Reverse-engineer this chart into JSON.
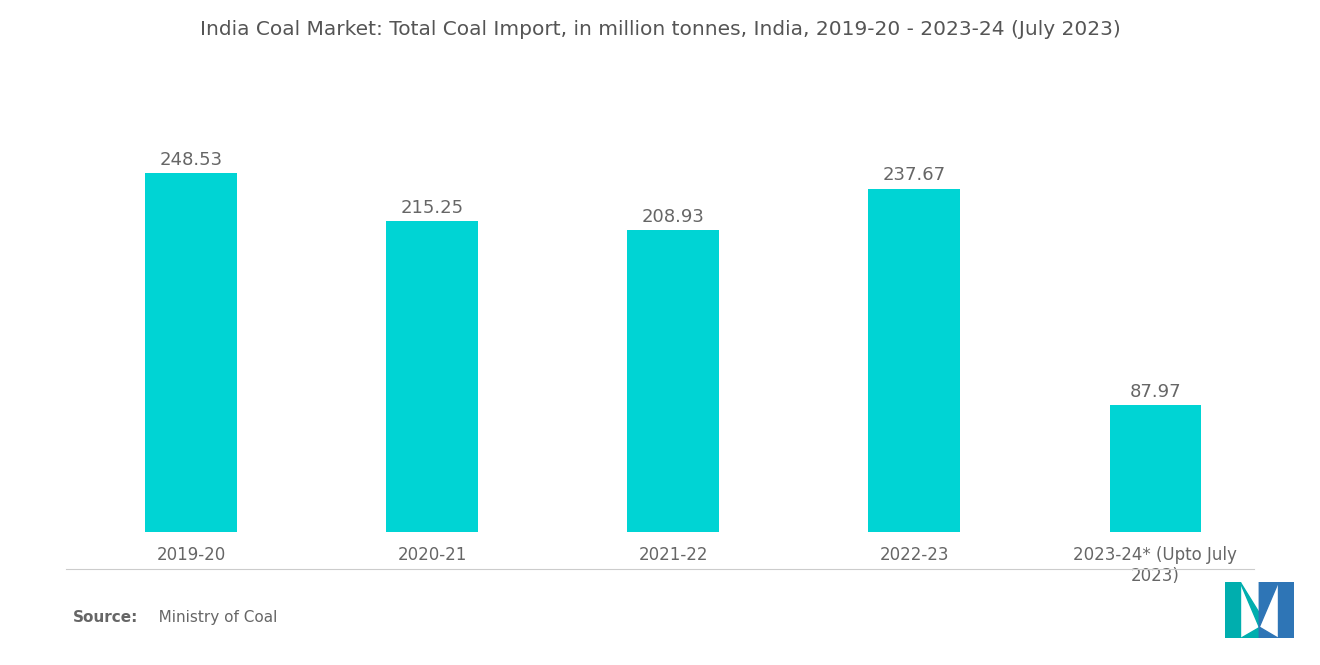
{
  "title": "India Coal Market: Total Coal Import, in million tonnes, India, 2019-20 - 2023-24 (July 2023)",
  "categories": [
    "2019-20",
    "2020-21",
    "2021-22",
    "2022-23",
    "2023-24* (Upto July\n2023)"
  ],
  "values": [
    248.53,
    215.25,
    208.93,
    237.67,
    87.97
  ],
  "bar_color": "#00D4D4",
  "background_color": "#ffffff",
  "title_color": "#555555",
  "label_color": "#666666",
  "tick_color": "#666666",
  "source_bold": "Source:",
  "source_rest": "   Ministry of Coal",
  "title_fontsize": 14.5,
  "label_fontsize": 13,
  "tick_fontsize": 12,
  "source_fontsize": 11,
  "ylim": [
    0,
    290
  ],
  "bar_width": 0.38,
  "logo_teal": "#00AEAE",
  "logo_blue": "#2E75B6"
}
